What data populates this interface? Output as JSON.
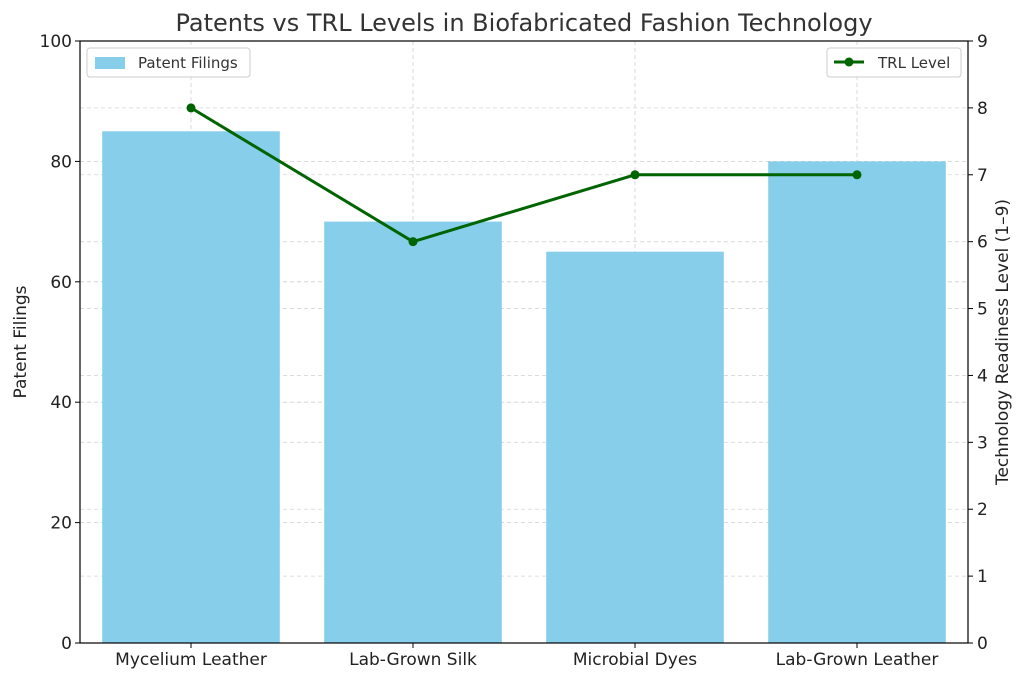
{
  "chart_data": {
    "type": "bar+line",
    "title": "Patents vs TRL Levels in Biofabricated Fashion Technology",
    "categories": [
      "Mycelium Leather",
      "Lab-Grown Silk",
      "Microbial Dyes",
      "Lab-Grown Leather"
    ],
    "bar_series": {
      "name": "Patent Filings",
      "values": [
        85,
        70,
        65,
        80
      ],
      "color": "#87ceeb",
      "axis": "left"
    },
    "line_series": {
      "name": "TRL Level",
      "values": [
        8,
        6,
        7,
        7
      ],
      "color": "#006400",
      "axis": "right"
    },
    "left_axis": {
      "label": "Patent Filings",
      "ylim": [
        0,
        100
      ],
      "ticks": [
        "0",
        "20",
        "40",
        "60",
        "80",
        "100"
      ]
    },
    "right_axis": {
      "label": "Technology Readiness Level (1–9)",
      "ylim": [
        0,
        9
      ],
      "ticks": [
        "0",
        "1",
        "2",
        "3",
        "4",
        "5",
        "6",
        "7",
        "8",
        "9"
      ]
    },
    "grid": true,
    "legend_bar_position": "top-left",
    "legend_line_position": "top-right"
  }
}
